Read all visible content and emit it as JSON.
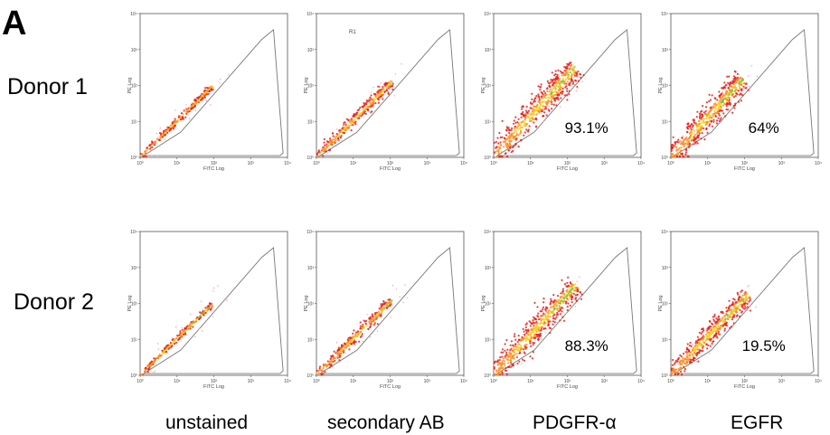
{
  "figure": {
    "panel_letter": "A",
    "rows": [
      "Donor 1",
      "Donor 2"
    ],
    "columns": [
      "unstained",
      "secondary AB",
      "PDGFR-α",
      "EGFR"
    ]
  },
  "chart_data": {
    "type": "scatter",
    "description_kind": "flow-cytometry density dot plots",
    "xlabel": "FITC Log",
    "ylabel": "PE Log",
    "scale": "log",
    "xlim": [
      1,
      10000
    ],
    "ylim": [
      1,
      10000
    ],
    "tick_labels": [
      "10⁰",
      "10¹",
      "10²",
      "10³",
      "10⁴"
    ],
    "gate_label": "R1",
    "colors": {
      "low": "#e8201a",
      "mid": "#ff8c1a",
      "high": "#f5d020",
      "peak": "#7ac043",
      "gate": "#777777"
    },
    "panels": [
      {
        "row": "Donor 1",
        "column": "unstained",
        "percent": "",
        "gate_label_visible": false
      },
      {
        "row": "Donor 1",
        "column": "secondary AB",
        "percent": "",
        "gate_label_visible": true
      },
      {
        "row": "Donor 1",
        "column": "PDGFR-α",
        "percent": "93.1%",
        "gate_label_visible": false
      },
      {
        "row": "Donor 1",
        "column": "EGFR",
        "percent": "64%",
        "gate_label_visible": false
      },
      {
        "row": "Donor 2",
        "column": "unstained",
        "percent": "",
        "gate_label_visible": false
      },
      {
        "row": "Donor 2",
        "column": "secondary AB",
        "percent": "",
        "gate_label_visible": false
      },
      {
        "row": "Donor 2",
        "column": "PDGFR-α",
        "percent": "88.3%",
        "gate_label_visible": false
      },
      {
        "row": "Donor 2",
        "column": "EGFR",
        "percent": "19.5%",
        "gate_label_visible": false
      }
    ]
  }
}
